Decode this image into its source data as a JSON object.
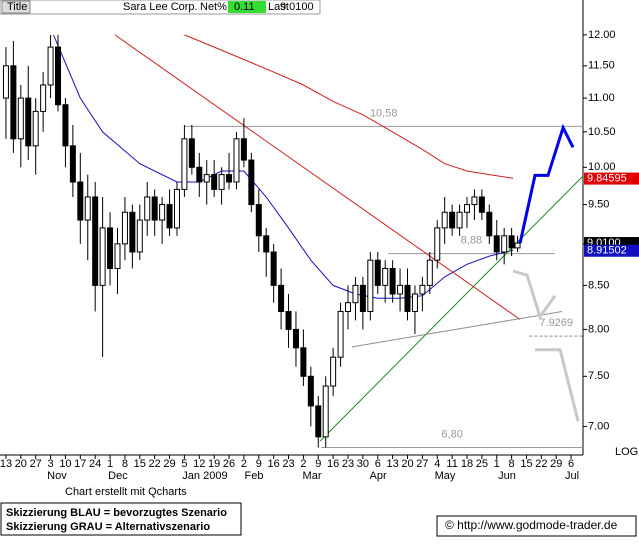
{
  "header": {
    "title_tab": "Title",
    "name": "Sara Lee Corp.",
    "net_label": "Net%",
    "net_value": "0.11",
    "last_label": "Last",
    "last_value": "9.0100"
  },
  "footer": {
    "credit": "Chart erstellt mit Qcharts",
    "legend_blue": "Skizzierung BLAU = bevorzugtes Szenario",
    "legend_gray": "Skizzierung GRAU = Alternativszenario",
    "url": "© http://www.godmode-trader.de"
  },
  "chart_data": {
    "type": "candlestick",
    "log_scale": true,
    "scale_label": "LOG",
    "xlim": [
      -0.4,
      38.8
    ],
    "ylim": [
      6.73,
      12.59
    ],
    "yticks": [
      {
        "value": 12,
        "label": "12.00"
      },
      {
        "value": 11.5,
        "label": "11.50"
      },
      {
        "value": 11,
        "label": "11.00"
      },
      {
        "value": 10.5,
        "label": "10.50"
      },
      {
        "value": 10,
        "label": "10.00"
      },
      {
        "value": 9.5,
        "label": "9.50"
      },
      {
        "value": 9,
        "label": "9.00"
      },
      {
        "value": 8.5,
        "label": "8.50"
      },
      {
        "value": 8,
        "label": "8.00"
      },
      {
        "value": 7.5,
        "label": "7.50"
      },
      {
        "value": 7,
        "label": "7.00"
      }
    ],
    "xticks": [
      {
        "value": 0,
        "label": "13"
      },
      {
        "value": 1,
        "label": "20"
      },
      {
        "value": 2,
        "label": "27"
      },
      {
        "value": 3,
        "label": "3"
      },
      {
        "value": 4,
        "label": "10"
      },
      {
        "value": 5,
        "label": "17"
      },
      {
        "value": 6,
        "label": "24"
      },
      {
        "value": 7,
        "label": "1"
      },
      {
        "value": 8,
        "label": "8"
      },
      {
        "value": 9,
        "label": "15"
      },
      {
        "value": 10,
        "label": "22"
      },
      {
        "value": 11,
        "label": "29"
      },
      {
        "value": 12,
        "label": "5"
      },
      {
        "value": 13,
        "label": "12"
      },
      {
        "value": 14,
        "label": "19"
      },
      {
        "value": 15,
        "label": "26"
      },
      {
        "value": 16,
        "label": "2"
      },
      {
        "value": 17,
        "label": "9"
      },
      {
        "value": 18,
        "label": "16"
      },
      {
        "value": 19,
        "label": "23"
      },
      {
        "value": 20,
        "label": "2"
      },
      {
        "value": 21,
        "label": "9"
      },
      {
        "value": 22,
        "label": "16"
      },
      {
        "value": 23,
        "label": "23"
      },
      {
        "value": 24,
        "label": "30"
      },
      {
        "value": 25,
        "label": "6"
      },
      {
        "value": 26,
        "label": "13"
      },
      {
        "value": 27,
        "label": "20"
      },
      {
        "value": 28,
        "label": "27"
      },
      {
        "value": 29,
        "label": "4"
      },
      {
        "value": 30,
        "label": "11"
      },
      {
        "value": 31,
        "label": "18"
      },
      {
        "value": 32,
        "label": "25"
      },
      {
        "value": 33,
        "label": "1"
      },
      {
        "value": 34,
        "label": "8"
      },
      {
        "value": 35,
        "label": "15"
      },
      {
        "value": 36,
        "label": "22"
      },
      {
        "value": 37,
        "label": "29"
      },
      {
        "value": 38,
        "label": "6"
      }
    ],
    "months": [
      {
        "value": 3.43,
        "label": "Nov"
      },
      {
        "value": 7.53,
        "label": "Dec"
      },
      {
        "value": 13.38,
        "label": "Jan 2009"
      },
      {
        "value": 16.68,
        "label": "Feb"
      },
      {
        "value": 20.58,
        "label": "Mar"
      },
      {
        "value": 25.02,
        "label": "Apr"
      },
      {
        "value": 29.52,
        "label": "May"
      },
      {
        "value": 33.69,
        "label": "Jun"
      },
      {
        "value": 38.06,
        "label": "Jul"
      }
    ],
    "x": [
      0,
      0.5,
      1,
      1.5,
      2,
      2.5,
      3,
      3.5,
      4,
      4.5,
      5,
      5.5,
      6,
      6.5,
      7,
      7.5,
      8,
      8.5,
      9,
      9.5,
      10,
      10.5,
      11,
      11.5,
      12,
      12.5,
      13,
      13.5,
      14,
      14.5,
      15,
      15.5,
      16,
      16.5,
      17,
      17.5,
      18,
      18.5,
      19,
      19.5,
      20,
      20.5,
      21,
      21.5,
      22,
      22.5,
      23,
      23.5,
      24,
      24.5,
      25,
      25.5,
      26,
      26.5,
      27,
      27.5,
      28,
      28.5,
      29,
      29.5,
      30,
      30.5,
      31,
      31.5,
      32,
      32.5,
      33,
      33.5,
      34,
      34.4
    ],
    "open": [
      11.0,
      11.5,
      10.4,
      11.0,
      10.3,
      10.8,
      11.2,
      11.8,
      10.9,
      10.3,
      9.8,
      9.3,
      9.6,
      8.5,
      9.2,
      8.7,
      9.0,
      9.4,
      8.9,
      9.3,
      9.6,
      9.3,
      9.5,
      9.2,
      9.7,
      10.4,
      10.0,
      9.8,
      9.9,
      9.7,
      9.9,
      9.8,
      10.4,
      10.1,
      9.5,
      9.1,
      8.9,
      8.5,
      8.2,
      8.0,
      7.8,
      7.5,
      7.2,
      6.9,
      7.4,
      7.7,
      8.2,
      8.3,
      8.5,
      8.2,
      8.8,
      8.5,
      8.7,
      8.4,
      8.5,
      8.2,
      8.4,
      8.5,
      8.8,
      9.2,
      9.4,
      9.2,
      9.4,
      9.5,
      9.6,
      9.4,
      9.1,
      8.9,
      9.1,
      8.95
    ],
    "high": [
      11.8,
      11.9,
      11.2,
      11.5,
      11.0,
      11.4,
      12.0,
      12.0,
      11.0,
      10.6,
      10.2,
      9.9,
      9.8,
      9.6,
      9.4,
      9.2,
      9.6,
      9.5,
      9.5,
      9.8,
      9.7,
      9.6,
      9.7,
      9.8,
      10.6,
      10.6,
      10.2,
      10.1,
      10.1,
      10.0,
      10.2,
      10.5,
      10.7,
      10.2,
      9.7,
      9.2,
      9.0,
      8.7,
      8.4,
      8.2,
      8.0,
      7.6,
      7.3,
      7.5,
      7.8,
      8.3,
      8.5,
      8.6,
      8.6,
      8.9,
      8.9,
      8.8,
      8.8,
      8.7,
      8.7,
      8.5,
      8.6,
      8.9,
      9.3,
      9.6,
      9.5,
      9.5,
      9.6,
      9.7,
      9.7,
      9.5,
      9.3,
      9.2,
      9.2,
      9.1
    ],
    "low": [
      10.4,
      10.2,
      10.0,
      10.1,
      9.9,
      10.5,
      11.0,
      10.8,
      10.0,
      9.6,
      9.0,
      8.8,
      8.2,
      7.7,
      8.5,
      8.4,
      8.8,
      8.7,
      8.8,
      9.1,
      9.1,
      9.0,
      9.1,
      9.1,
      9.6,
      9.9,
      9.6,
      9.5,
      9.6,
      9.5,
      9.7,
      9.7,
      10.0,
      9.4,
      8.9,
      8.6,
      8.3,
      8.0,
      7.8,
      7.6,
      7.4,
      7.0,
      6.8,
      6.8,
      7.3,
      7.6,
      8.0,
      8.1,
      8.0,
      8.1,
      8.4,
      8.3,
      8.3,
      8.2,
      8.1,
      7.95,
      8.2,
      8.4,
      8.7,
      9.0,
      9.1,
      9.1,
      9.2,
      9.3,
      9.3,
      9.0,
      8.8,
      8.75,
      8.85,
      8.9
    ],
    "close": [
      11.5,
      10.4,
      11.0,
      10.3,
      10.8,
      11.2,
      11.8,
      10.9,
      10.3,
      9.8,
      9.3,
      9.6,
      8.5,
      9.2,
      8.7,
      9.0,
      9.4,
      8.9,
      9.3,
      9.6,
      9.3,
      9.5,
      9.2,
      9.7,
      10.4,
      10.0,
      9.8,
      9.9,
      9.7,
      9.9,
      9.8,
      10.4,
      10.1,
      9.5,
      9.1,
      8.9,
      8.5,
      8.2,
      8.0,
      7.8,
      7.5,
      7.2,
      6.9,
      7.4,
      7.7,
      8.2,
      8.3,
      8.5,
      8.2,
      8.8,
      8.5,
      8.7,
      8.4,
      8.5,
      8.2,
      8.4,
      8.5,
      8.8,
      9.2,
      9.4,
      9.2,
      9.4,
      9.5,
      9.6,
      9.4,
      9.1,
      8.9,
      9.1,
      8.95,
      9.01
    ],
    "lines": [
      {
        "color": "#1010c0",
        "x": [
          3.2,
          5,
          6.5,
          9,
          11.5,
          13,
          14.5,
          16,
          17.5,
          19,
          20.5,
          22,
          23.5,
          25,
          26.5,
          28,
          29.5,
          31,
          32.5,
          34.1
        ],
        "values": [
          12.0,
          11.0,
          10.5,
          10.05,
          9.8,
          9.8,
          9.95,
          9.95,
          9.6,
          9.2,
          8.8,
          8.5,
          8.4,
          8.35,
          8.35,
          8.38,
          8.6,
          8.75,
          8.85,
          8.92
        ]
      },
      {
        "color": "#d02020",
        "x": [
          12,
          14,
          16,
          18,
          20,
          22,
          24,
          26,
          28,
          29.5,
          31,
          32.5,
          34.1
        ],
        "values": [
          12.0,
          11.8,
          11.6,
          11.4,
          11.2,
          10.95,
          10.75,
          10.5,
          10.25,
          10.05,
          9.95,
          9.9,
          9.85
        ]
      },
      {
        "color": "#d02020",
        "x": [
          7.33,
          34.57
        ],
        "values": [
          12.0,
          8.11
        ]
      },
      {
        "color": "#1a8a1a",
        "x": [
          21.12,
          38.8
        ],
        "values": [
          6.86,
          9.88
        ]
      },
      {
        "color": "#909090",
        "x": [
          23.27,
          37.39
        ],
        "values": [
          7.81,
          8.2
        ]
      },
      {
        "color": "#0000ee",
        "width": 3,
        "x": [
          34.57,
          35.57,
          36.45,
          37.46,
          38.13
        ],
        "values": [
          9.01,
          9.89,
          9.89,
          10.56,
          10.28
        ]
      },
      {
        "color": "#c8c8c8",
        "width": 3,
        "x": [
          34.1,
          35.04,
          35.91,
          36.92,
          null,
          35.57,
          37.26,
          38.47
        ],
        "values": [
          8.67,
          8.62,
          8.14,
          8.38,
          null,
          7.78,
          7.78,
          7.05
        ]
      }
    ],
    "levels": [
      {
        "value": 10.58,
        "label": "10,58",
        "from": 12,
        "to": 38.8
      },
      {
        "value": 8.88,
        "label": "8,88",
        "from": 25.7,
        "to": 36.9
      },
      {
        "value": 6.8,
        "label": "6,80",
        "from": 21.2,
        "to": 38.8
      },
      {
        "value": 7.9269,
        "label": "7.9269",
        "from": 35.2,
        "to": 38.8,
        "dashed": true
      }
    ],
    "price_tags": [
      {
        "value": 9.84595,
        "label": "9.84595",
        "color": "#e00000"
      },
      {
        "value": 9.01,
        "label": "9.0100",
        "color": "#000000"
      },
      {
        "value": 8.91502,
        "label": "8.91502",
        "color": "#1010c0"
      }
    ]
  }
}
